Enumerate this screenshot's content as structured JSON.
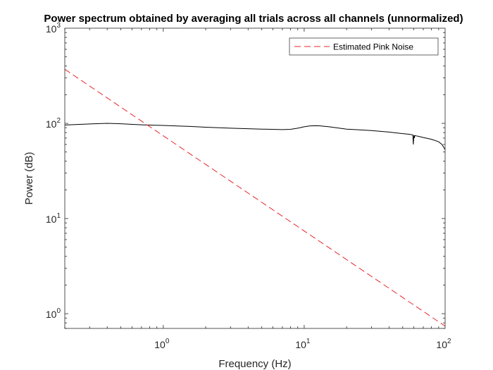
{
  "chart_data": {
    "type": "line",
    "title": "Power spectrum obtained by averaging all trials across all channels (unnormalized)",
    "xlabel": "Frequency (Hz)",
    "ylabel": "Power (dB)",
    "xscale": "log",
    "yscale": "log",
    "xlim": [
      0.2,
      100
    ],
    "ylim": [
      0.7,
      1000
    ],
    "xticks": [
      {
        "value": 1,
        "base": "10",
        "exp": "0"
      },
      {
        "value": 10,
        "base": "10",
        "exp": "1"
      },
      {
        "value": 100,
        "base": "10",
        "exp": "2"
      }
    ],
    "yticks": [
      {
        "value": 1,
        "base": "10",
        "exp": "0"
      },
      {
        "value": 10,
        "base": "10",
        "exp": "1"
      },
      {
        "value": 100,
        "base": "10",
        "exp": "2"
      },
      {
        "value": 1000,
        "base": "10",
        "exp": "3"
      }
    ],
    "grid": false,
    "legend_position": "top-right",
    "series": [
      {
        "key": "spectrum",
        "color": "#000000",
        "dash": "solid",
        "x": [
          0.2,
          0.3,
          0.4,
          0.5,
          0.7,
          1,
          1.5,
          2,
          3,
          5,
          7,
          8,
          9,
          10,
          11,
          12,
          13,
          15,
          20,
          30,
          40,
          50,
          55,
          58,
          59,
          59.5,
          60,
          60.5,
          61,
          62,
          65,
          70,
          80,
          90,
          95,
          100
        ],
        "y": [
          96,
          98.5,
          100,
          99,
          96.5,
          95,
          93,
          91,
          89,
          87,
          86,
          86.5,
          89,
          92,
          94,
          94.5,
          94,
          92,
          87,
          84,
          81,
          78,
          77,
          76,
          75.5,
          60,
          75,
          70,
          74.5,
          74,
          73,
          71,
          68,
          64,
          60,
          53
        ]
      },
      {
        "key": "pink_noise",
        "name": "Estimated Pink Noise",
        "color": "#e8262a",
        "dash": "dashed",
        "x": [
          0.2,
          100
        ],
        "y": [
          370,
          0.74
        ]
      }
    ]
  }
}
